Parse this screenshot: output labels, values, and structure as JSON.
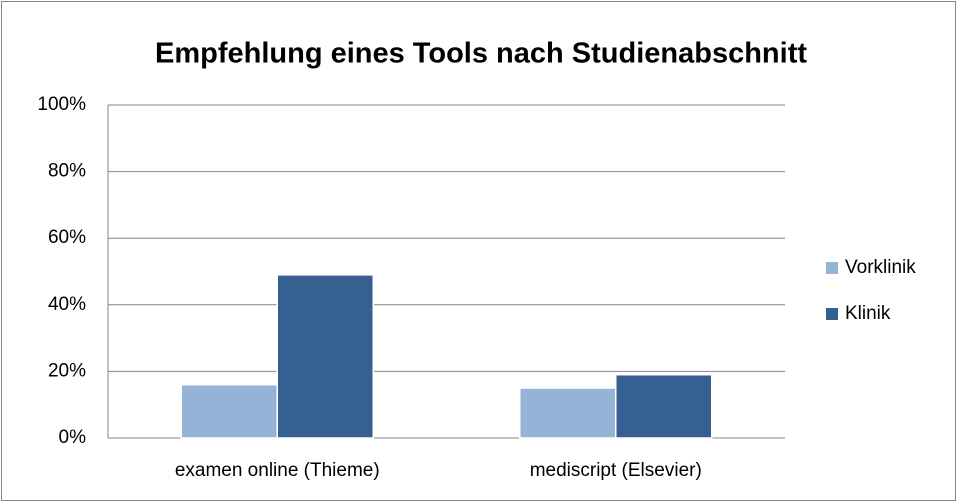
{
  "chart_data": {
    "type": "bar",
    "title": "Empfehlung eines Tools nach Studienabschnitt",
    "categories": [
      "examen online (Thieme)",
      "mediscript (Elsevier)"
    ],
    "series": [
      {
        "name": "Vorklinik",
        "color": "#95b3d7",
        "values": [
          16,
          15
        ]
      },
      {
        "name": "Klinik",
        "color": "#376092",
        "values": [
          49,
          19
        ]
      }
    ],
    "ylim": [
      0,
      100
    ],
    "yticks": [
      {
        "value": 0,
        "label": "0%"
      },
      {
        "value": 20,
        "label": "20%"
      },
      {
        "value": 40,
        "label": "40%"
      },
      {
        "value": 60,
        "label": "60%"
      },
      {
        "value": 80,
        "label": "80%"
      },
      {
        "value": 100,
        "label": "100%"
      }
    ],
    "grid": true,
    "legend": "right"
  }
}
